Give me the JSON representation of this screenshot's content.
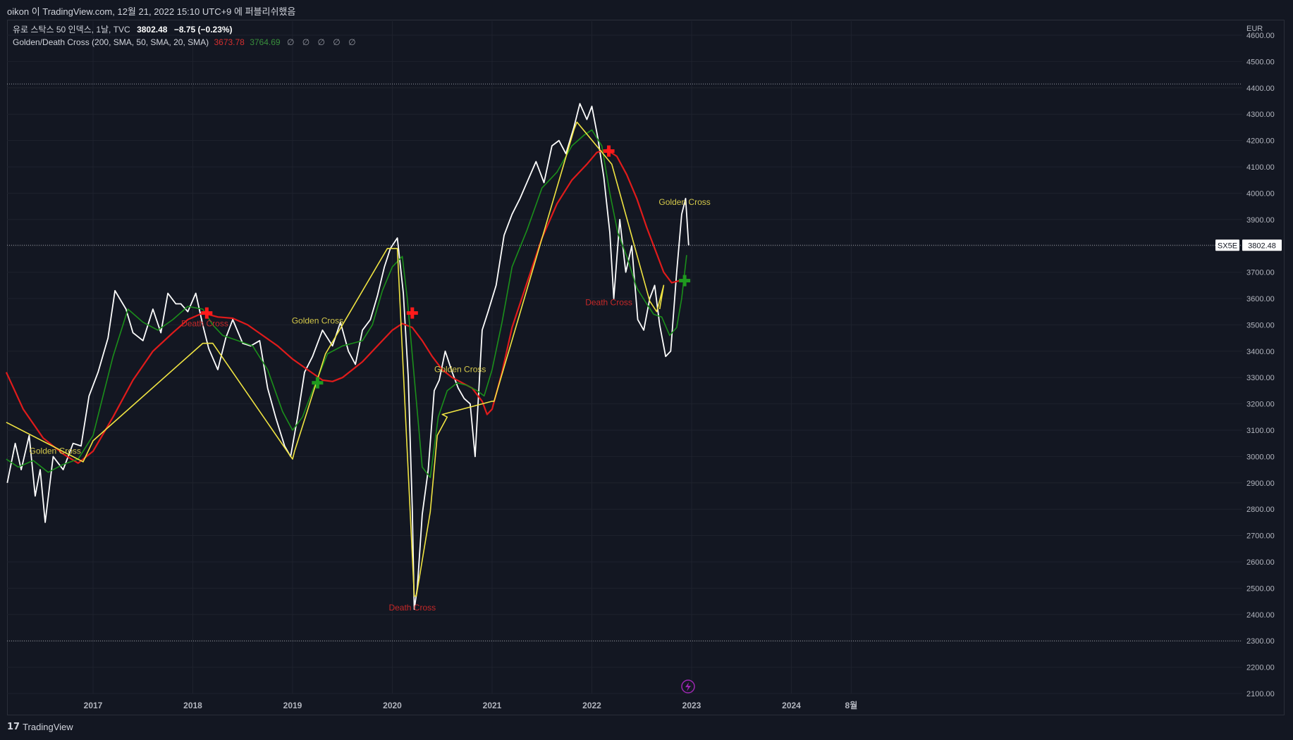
{
  "header": {
    "publish_line": "oikon 이 TradingView.com, 12월 21, 2022 15:10 UTC+9 에 퍼블리쉬했음"
  },
  "legend": {
    "symbol_line": "유로 스탁스 50 인덱스, 1날, TVC",
    "last_price": "3802.48",
    "change": "−8.75 (−0.23%)",
    "indicator_name": "Golden/Death Cross (200, SMA, 50, SMA, 20, SMA)",
    "sma_long_value": "3673.78",
    "sma_short_value": "3764.69",
    "extra_values": "∅ ∅ ∅ ∅ ∅"
  },
  "footer": {
    "brand": "TradingView",
    "logo_glyph": "𝟭𝟳"
  },
  "colors": {
    "background": "#131722",
    "price": "#ffffff",
    "sma_long": "#e01b1b",
    "sma_short": "#1b8f1b",
    "trend": "#f0e442",
    "golden_label": "#d4c84a",
    "death_label": "#c62828",
    "axis_text": "#b2b5be"
  },
  "chart_data": {
    "type": "line",
    "currency": "EUR",
    "ylim": [
      2100,
      4600
    ],
    "y_ticks": [
      2100,
      2200,
      2300,
      2400,
      2500,
      2600,
      2700,
      2800,
      2900,
      3000,
      3100,
      3200,
      3300,
      3400,
      3500,
      3600,
      3700,
      3800,
      3900,
      4000,
      4100,
      4200,
      4300,
      4400,
      4500,
      4600
    ],
    "y_tick_labels": [
      "2100.00",
      "2200.00",
      "2300.00",
      "2400.00",
      "2500.00",
      "2600.00",
      "2700.00",
      "2800.00",
      "2900.00",
      "3000.00",
      "3100.00",
      "3200.00",
      "3300.00",
      "3400.00",
      "3500.00",
      "3600.00",
      "3700.00",
      "3800.00",
      "3900.00",
      "4000.00",
      "4100.00",
      "4200.00",
      "4300.00",
      "4400.00",
      "4500.00",
      "4600.00"
    ],
    "x_ticks": [
      {
        "label": "2017",
        "x": 2017.0
      },
      {
        "label": "2018",
        "x": 2018.0
      },
      {
        "label": "2019",
        "x": 2019.0
      },
      {
        "label": "2020",
        "x": 2020.0
      },
      {
        "label": "2021",
        "x": 2021.0
      },
      {
        "label": "2022",
        "x": 2022.0
      },
      {
        "label": "2023",
        "x": 2023.0
      },
      {
        "label": "2024",
        "x": 2024.0
      },
      {
        "label": "8월",
        "x": 2024.6
      }
    ],
    "xlim": [
      2016.13,
      2030.0
    ],
    "price_tag": {
      "symbol": "SX5E",
      "value": 3802.48
    },
    "horizontal_levels": [
      4415,
      3802.48,
      2300
    ],
    "series": [
      {
        "name": "유로 스탁스 50 인덱스",
        "x": [
          2016.14,
          2016.22,
          2016.28,
          2016.36,
          2016.42,
          2016.47,
          2016.52,
          2016.6,
          2016.7,
          2016.8,
          2016.88,
          2016.96,
          2017.05,
          2017.15,
          2017.22,
          2017.33,
          2017.4,
          2017.5,
          2017.6,
          2017.68,
          2017.75,
          2017.83,
          2017.88,
          2017.95,
          2018.03,
          2018.1,
          2018.16,
          2018.25,
          2018.33,
          2018.4,
          2018.5,
          2018.58,
          2018.67,
          2018.75,
          2018.83,
          2018.92,
          2018.98,
          2019.05,
          2019.12,
          2019.2,
          2019.3,
          2019.4,
          2019.48,
          2019.56,
          2019.63,
          2019.7,
          2019.78,
          2019.85,
          2019.92,
          2019.98,
          2020.05,
          2020.11,
          2020.16,
          2020.2,
          2020.22,
          2020.25,
          2020.3,
          2020.36,
          2020.42,
          2020.47,
          2020.53,
          2020.6,
          2020.66,
          2020.72,
          2020.78,
          2020.83,
          2020.9,
          2020.96,
          2021.04,
          2021.12,
          2021.2,
          2021.28,
          2021.36,
          2021.44,
          2021.52,
          2021.6,
          2021.67,
          2021.74,
          2021.82,
          2021.88,
          2021.95,
          2022.0,
          2022.06,
          2022.12,
          2022.18,
          2022.22,
          2022.28,
          2022.34,
          2022.4,
          2022.46,
          2022.52,
          2022.58,
          2022.63,
          2022.68,
          2022.74,
          2022.79,
          2022.85,
          2022.9,
          2022.94,
          2022.97
        ],
        "values": [
          2900,
          3050,
          2950,
          3080,
          2850,
          2950,
          2750,
          3000,
          2950,
          3050,
          3040,
          3230,
          3320,
          3450,
          3630,
          3560,
          3470,
          3440,
          3560,
          3470,
          3620,
          3580,
          3580,
          3550,
          3620,
          3500,
          3410,
          3330,
          3450,
          3520,
          3430,
          3420,
          3440,
          3260,
          3150,
          3040,
          3000,
          3150,
          3320,
          3380,
          3480,
          3420,
          3510,
          3400,
          3350,
          3480,
          3520,
          3610,
          3720,
          3790,
          3830,
          3620,
          3300,
          2800,
          2420,
          2500,
          2780,
          2950,
          3250,
          3290,
          3400,
          3320,
          3260,
          3220,
          3200,
          3000,
          3480,
          3550,
          3650,
          3840,
          3920,
          3980,
          4050,
          4120,
          4040,
          4180,
          4200,
          4150,
          4250,
          4340,
          4280,
          4330,
          4210,
          4060,
          3850,
          3600,
          3900,
          3700,
          3800,
          3520,
          3480,
          3600,
          3650,
          3500,
          3380,
          3400,
          3700,
          3920,
          3980,
          3802
        ]
      },
      {
        "name": "SMA 200",
        "x": [
          2016.13,
          2016.3,
          2016.5,
          2016.7,
          2016.85,
          2017.0,
          2017.2,
          2017.4,
          2017.6,
          2017.8,
          2017.95,
          2018.1,
          2018.25,
          2018.4,
          2018.55,
          2018.7,
          2018.85,
          2019.0,
          2019.15,
          2019.3,
          2019.4,
          2019.5,
          2019.7,
          2019.85,
          2020.0,
          2020.1,
          2020.2,
          2020.3,
          2020.4,
          2020.5,
          2020.6,
          2020.7,
          2020.8,
          2020.9,
          2020.95,
          2021.0,
          2021.1,
          2021.2,
          2021.35,
          2021.5,
          2021.65,
          2021.8,
          2021.95,
          2022.05,
          2022.15,
          2022.25,
          2022.35,
          2022.45,
          2022.55,
          2022.65,
          2022.72,
          2022.8,
          2022.88,
          2022.93
        ],
        "values": [
          3320,
          3180,
          3070,
          3010,
          2975,
          3020,
          3150,
          3290,
          3400,
          3470,
          3520,
          3545,
          3530,
          3525,
          3500,
          3460,
          3420,
          3370,
          3330,
          3290,
          3285,
          3300,
          3360,
          3420,
          3480,
          3505,
          3490,
          3440,
          3380,
          3330,
          3300,
          3280,
          3260,
          3210,
          3160,
          3180,
          3320,
          3490,
          3660,
          3830,
          3960,
          4050,
          4110,
          4155,
          4165,
          4140,
          4070,
          3980,
          3870,
          3770,
          3700,
          3660,
          3668,
          3674
        ]
      },
      {
        "name": "SMA 50",
        "x": [
          2016.13,
          2016.25,
          2016.4,
          2016.55,
          2016.7,
          2016.85,
          2017.0,
          2017.1,
          2017.2,
          2017.35,
          2017.5,
          2017.65,
          2017.8,
          2017.95,
          2018.1,
          2018.2,
          2018.3,
          2018.45,
          2018.6,
          2018.75,
          2018.9,
          2019.0,
          2019.1,
          2019.2,
          2019.35,
          2019.5,
          2019.6,
          2019.7,
          2019.8,
          2019.9,
          2020.0,
          2020.1,
          2020.15,
          2020.22,
          2020.3,
          2020.38,
          2020.46,
          2020.55,
          2020.65,
          2020.75,
          2020.85,
          2020.92,
          2021.0,
          2021.1,
          2021.2,
          2021.35,
          2021.5,
          2021.65,
          2021.8,
          2021.92,
          2022.0,
          2022.1,
          2022.18,
          2022.26,
          2022.35,
          2022.45,
          2022.55,
          2022.62,
          2022.7,
          2022.78,
          2022.85,
          2022.9,
          2022.95
        ],
        "values": [
          2990,
          2960,
          2985,
          2940,
          2970,
          2990,
          3080,
          3230,
          3380,
          3560,
          3510,
          3480,
          3520,
          3570,
          3560,
          3500,
          3460,
          3440,
          3420,
          3330,
          3170,
          3100,
          3150,
          3250,
          3390,
          3420,
          3430,
          3440,
          3500,
          3630,
          3720,
          3760,
          3600,
          3300,
          2960,
          2920,
          3150,
          3250,
          3280,
          3270,
          3250,
          3230,
          3330,
          3510,
          3720,
          3860,
          4020,
          4080,
          4180,
          4220,
          4240,
          4180,
          4000,
          3850,
          3760,
          3640,
          3580,
          3540,
          3530,
          3460,
          3490,
          3600,
          3765
        ]
      },
      {
        "name": "trend",
        "x": [
          2016.13,
          2016.9,
          2017.0,
          2018.1,
          2018.2,
          2019.0,
          2019.02,
          2019.33,
          2019.95,
          2020.05,
          2020.22,
          2020.24,
          2020.38,
          2020.45,
          2020.55,
          2020.5,
          2021.0,
          2021.02,
          2021.82,
          2021.85,
          2022.2,
          2022.58,
          2022.65,
          2022.72,
          2022.68
        ],
        "values": [
          3130,
          2980,
          3060,
          3430,
          3430,
          2990,
          3020,
          3390,
          3790,
          3790,
          2470,
          2470,
          2790,
          3080,
          3150,
          3160,
          3210,
          3210,
          4240,
          4270,
          4110,
          3590,
          3550,
          3650,
          3560
        ]
      }
    ],
    "markers": [
      {
        "type": "death",
        "x": 2018.14,
        "y": 3545
      },
      {
        "type": "death",
        "x": 2020.2,
        "y": 3545
      },
      {
        "type": "death",
        "x": 2022.17,
        "y": 4160
      },
      {
        "type": "golden",
        "x": 2019.25,
        "y": 3280
      },
      {
        "type": "golden",
        "x": 2022.93,
        "y": 3668
      }
    ],
    "annotations": [
      {
        "text": "Golden Cross",
        "x": 2016.62,
        "y": 3010,
        "kind": "golden"
      },
      {
        "text": "Death Cross",
        "x": 2018.12,
        "y": 3495,
        "kind": "death"
      },
      {
        "text": "Golden Cross",
        "x": 2019.25,
        "y": 3505,
        "kind": "golden"
      },
      {
        "text": "Death Cross",
        "x": 2020.2,
        "y": 2415,
        "kind": "death"
      },
      {
        "text": "Golden Cross",
        "x": 2020.68,
        "y": 3320,
        "kind": "golden"
      },
      {
        "text": "Death Cross",
        "x": 2022.17,
        "y": 3575,
        "kind": "death"
      },
      {
        "text": "Golden Cross",
        "x": 2022.93,
        "y": 3955,
        "kind": "golden"
      }
    ]
  }
}
